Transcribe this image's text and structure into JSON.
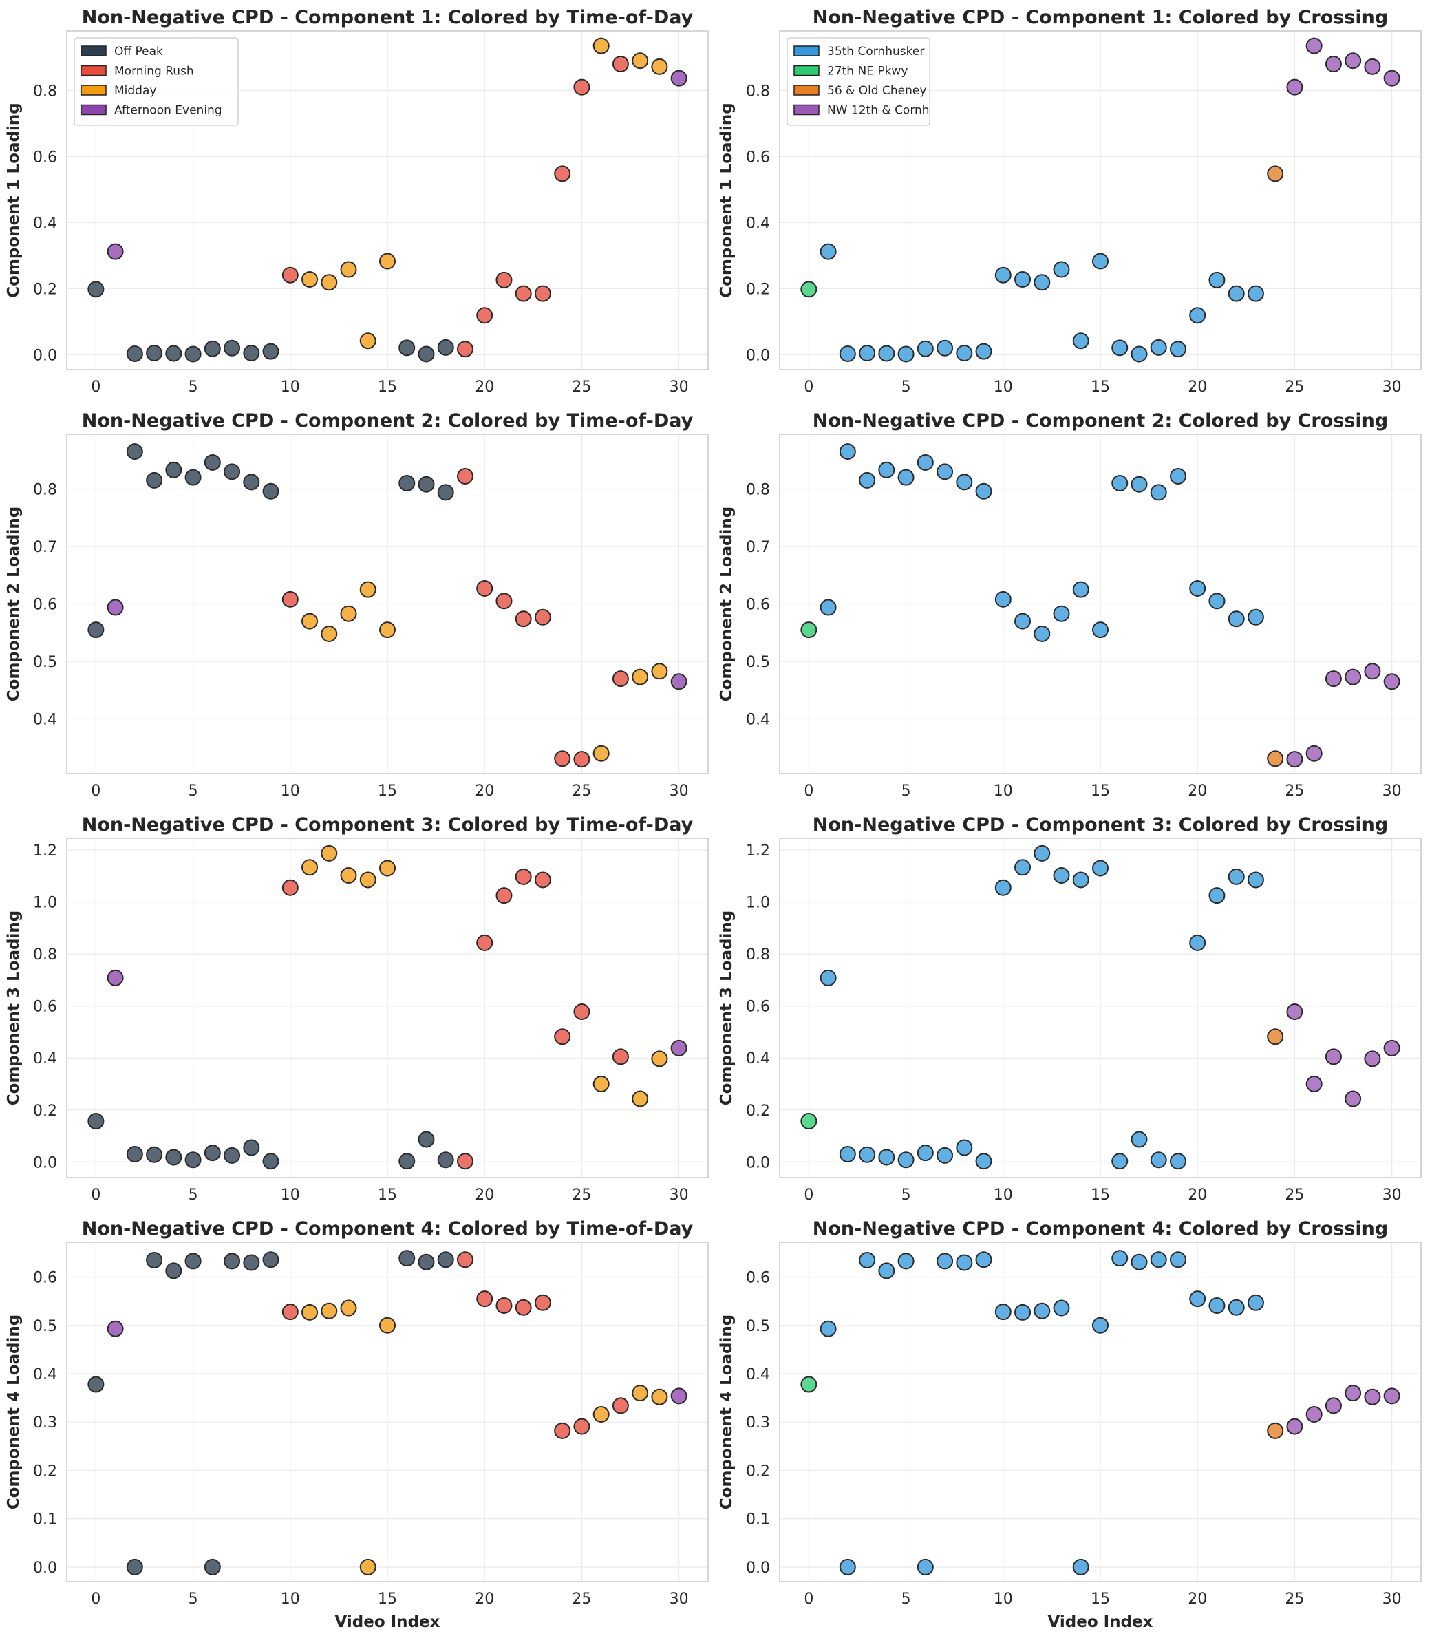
{
  "colors": {
    "Off Peak": "#2c3e50",
    "Morning Rush": "#e74c3c",
    "Midday": "#f39c12",
    "Afternoon Evening": "#8e44ad",
    "35th Cornhusker": "#3498db",
    "27th NE Pkwy": "#2ecc71",
    "56 & Old Cheney": "#e67e22",
    "NW 12th & Cornh": "#9b59b6"
  },
  "chart_data": [
    {
      "type": "scatter",
      "title": "Non-Negative CPD - Component 1: Colored by Time-of-Day",
      "ylabel": "Component 1 Loading",
      "xlabel": "",
      "xlim": [
        -1.5,
        31.5
      ],
      "ylim": [
        -0.045,
        0.98
      ],
      "xticks": [
        "0",
        "5",
        "10",
        "15",
        "20",
        "25",
        "30"
      ],
      "yticks": [
        "0.0",
        "0.2",
        "0.4",
        "0.6",
        "0.8"
      ],
      "legend": [
        "Off Peak",
        "Morning Rush",
        "Midday",
        "Afternoon Evening"
      ],
      "legend_position": "upper-left",
      "x": [
        0,
        1,
        2,
        3,
        4,
        5,
        6,
        7,
        8,
        9,
        10,
        11,
        12,
        13,
        14,
        15,
        16,
        17,
        18,
        19,
        20,
        21,
        22,
        23,
        24,
        25,
        26,
        27,
        28,
        29,
        30
      ],
      "y": [
        0.198,
        0.312,
        0.003,
        0.005,
        0.004,
        0.002,
        0.018,
        0.02,
        0.005,
        0.01,
        0.241,
        0.228,
        0.219,
        0.258,
        0.042,
        0.283,
        0.021,
        0.002,
        0.022,
        0.017,
        0.119,
        0.226,
        0.185,
        0.185,
        0.548,
        0.81,
        0.935,
        0.88,
        0.89,
        0.872,
        0.837
      ],
      "groups": [
        "Off Peak",
        "Afternoon Evening",
        "Off Peak",
        "Off Peak",
        "Off Peak",
        "Off Peak",
        "Off Peak",
        "Off Peak",
        "Off Peak",
        "Off Peak",
        "Morning Rush",
        "Midday",
        "Midday",
        "Midday",
        "Midday",
        "Midday",
        "Off Peak",
        "Off Peak",
        "Off Peak",
        "Morning Rush",
        "Morning Rush",
        "Morning Rush",
        "Morning Rush",
        "Morning Rush",
        "Morning Rush",
        "Morning Rush",
        "Midday",
        "Morning Rush",
        "Midday",
        "Midday",
        "Afternoon Evening"
      ]
    },
    {
      "type": "scatter",
      "title": "Non-Negative CPD - Component 1: Colored by Crossing",
      "ylabel": "Component 1 Loading",
      "xlabel": "",
      "xlim": [
        -1.5,
        31.5
      ],
      "ylim": [
        -0.045,
        0.98
      ],
      "xticks": [
        "0",
        "5",
        "10",
        "15",
        "20",
        "25",
        "30"
      ],
      "yticks": [
        "0.0",
        "0.2",
        "0.4",
        "0.6",
        "0.8"
      ],
      "legend": [
        "35th Cornhusker",
        "27th NE Pkwy",
        "56 & Old Cheney",
        "NW 12th & Cornh"
      ],
      "legend_position": "upper-left",
      "x": [
        0,
        1,
        2,
        3,
        4,
        5,
        6,
        7,
        8,
        9,
        10,
        11,
        12,
        13,
        14,
        15,
        16,
        17,
        18,
        19,
        20,
        21,
        22,
        23,
        24,
        25,
        26,
        27,
        28,
        29,
        30
      ],
      "y": [
        0.198,
        0.312,
        0.003,
        0.005,
        0.004,
        0.002,
        0.018,
        0.02,
        0.005,
        0.01,
        0.241,
        0.228,
        0.219,
        0.258,
        0.042,
        0.283,
        0.021,
        0.002,
        0.022,
        0.017,
        0.119,
        0.226,
        0.185,
        0.185,
        0.548,
        0.81,
        0.935,
        0.88,
        0.89,
        0.872,
        0.837
      ],
      "groups": [
        "27th NE Pkwy",
        "35th Cornhusker",
        "35th Cornhusker",
        "35th Cornhusker",
        "35th Cornhusker",
        "35th Cornhusker",
        "35th Cornhusker",
        "35th Cornhusker",
        "35th Cornhusker",
        "35th Cornhusker",
        "35th Cornhusker",
        "35th Cornhusker",
        "35th Cornhusker",
        "35th Cornhusker",
        "35th Cornhusker",
        "35th Cornhusker",
        "35th Cornhusker",
        "35th Cornhusker",
        "35th Cornhusker",
        "35th Cornhusker",
        "35th Cornhusker",
        "35th Cornhusker",
        "35th Cornhusker",
        "35th Cornhusker",
        "56 & Old Cheney",
        "NW 12th & Cornh",
        "NW 12th & Cornh",
        "NW 12th & Cornh",
        "NW 12th & Cornh",
        "NW 12th & Cornh",
        "NW 12th & Cornh"
      ]
    },
    {
      "type": "scatter",
      "title": "Non-Negative CPD - Component 2: Colored by Time-of-Day",
      "ylabel": "Component 2 Loading",
      "xlabel": "",
      "xlim": [
        -1.5,
        31.5
      ],
      "ylim": [
        0.305,
        0.895
      ],
      "xticks": [
        "0",
        "5",
        "10",
        "15",
        "20",
        "25",
        "30"
      ],
      "yticks": [
        "0.4",
        "0.5",
        "0.6",
        "0.7",
        "0.8"
      ],
      "legend": [],
      "x": [
        0,
        1,
        2,
        3,
        4,
        5,
        6,
        7,
        8,
        9,
        10,
        11,
        12,
        13,
        14,
        15,
        16,
        17,
        18,
        19,
        20,
        21,
        22,
        23,
        24,
        25,
        26,
        27,
        28,
        29,
        30
      ],
      "y": [
        0.555,
        0.594,
        0.865,
        0.815,
        0.833,
        0.82,
        0.846,
        0.83,
        0.812,
        0.796,
        0.608,
        0.57,
        0.548,
        0.583,
        0.625,
        0.555,
        0.81,
        0.808,
        0.794,
        0.822,
        0.627,
        0.605,
        0.574,
        0.577,
        0.331,
        0.33,
        0.34,
        0.47,
        0.473,
        0.483,
        0.465
      ],
      "groups": [
        "Off Peak",
        "Afternoon Evening",
        "Off Peak",
        "Off Peak",
        "Off Peak",
        "Off Peak",
        "Off Peak",
        "Off Peak",
        "Off Peak",
        "Off Peak",
        "Morning Rush",
        "Midday",
        "Midday",
        "Midday",
        "Midday",
        "Midday",
        "Off Peak",
        "Off Peak",
        "Off Peak",
        "Morning Rush",
        "Morning Rush",
        "Morning Rush",
        "Morning Rush",
        "Morning Rush",
        "Morning Rush",
        "Morning Rush",
        "Midday",
        "Morning Rush",
        "Midday",
        "Midday",
        "Afternoon Evening"
      ]
    },
    {
      "type": "scatter",
      "title": "Non-Negative CPD - Component 2: Colored by Crossing",
      "ylabel": "Component 2 Loading",
      "xlabel": "",
      "xlim": [
        -1.5,
        31.5
      ],
      "ylim": [
        0.305,
        0.895
      ],
      "xticks": [
        "0",
        "5",
        "10",
        "15",
        "20",
        "25",
        "30"
      ],
      "yticks": [
        "0.4",
        "0.5",
        "0.6",
        "0.7",
        "0.8"
      ],
      "legend": [],
      "x": [
        0,
        1,
        2,
        3,
        4,
        5,
        6,
        7,
        8,
        9,
        10,
        11,
        12,
        13,
        14,
        15,
        16,
        17,
        18,
        19,
        20,
        21,
        22,
        23,
        24,
        25,
        26,
        27,
        28,
        29,
        30
      ],
      "y": [
        0.555,
        0.594,
        0.865,
        0.815,
        0.833,
        0.82,
        0.846,
        0.83,
        0.812,
        0.796,
        0.608,
        0.57,
        0.548,
        0.583,
        0.625,
        0.555,
        0.81,
        0.808,
        0.794,
        0.822,
        0.627,
        0.605,
        0.574,
        0.577,
        0.331,
        0.33,
        0.34,
        0.47,
        0.473,
        0.483,
        0.465
      ],
      "groups": [
        "27th NE Pkwy",
        "35th Cornhusker",
        "35th Cornhusker",
        "35th Cornhusker",
        "35th Cornhusker",
        "35th Cornhusker",
        "35th Cornhusker",
        "35th Cornhusker",
        "35th Cornhusker",
        "35th Cornhusker",
        "35th Cornhusker",
        "35th Cornhusker",
        "35th Cornhusker",
        "35th Cornhusker",
        "35th Cornhusker",
        "35th Cornhusker",
        "35th Cornhusker",
        "35th Cornhusker",
        "35th Cornhusker",
        "35th Cornhusker",
        "35th Cornhusker",
        "35th Cornhusker",
        "35th Cornhusker",
        "35th Cornhusker",
        "56 & Old Cheney",
        "NW 12th & Cornh",
        "NW 12th & Cornh",
        "NW 12th & Cornh",
        "NW 12th & Cornh",
        "NW 12th & Cornh",
        "NW 12th & Cornh"
      ]
    },
    {
      "type": "scatter",
      "title": "Non-Negative CPD - Component 3: Colored by Time-of-Day",
      "ylabel": "Component 3 Loading",
      "xlabel": "",
      "xlim": [
        -1.5,
        31.5
      ],
      "ylim": [
        -0.06,
        1.245
      ],
      "xticks": [
        "0",
        "5",
        "10",
        "15",
        "20",
        "25",
        "30"
      ],
      "yticks": [
        "0.0",
        "0.2",
        "0.4",
        "0.6",
        "0.8",
        "1.0",
        "1.2"
      ],
      "legend": [],
      "x": [
        0,
        1,
        2,
        3,
        4,
        5,
        6,
        7,
        8,
        9,
        10,
        11,
        12,
        13,
        14,
        15,
        16,
        17,
        18,
        19,
        20,
        21,
        22,
        23,
        24,
        25,
        26,
        27,
        28,
        29,
        30
      ],
      "y": [
        0.157,
        0.708,
        0.03,
        0.028,
        0.018,
        0.008,
        0.035,
        0.025,
        0.055,
        0.003,
        1.055,
        1.133,
        1.187,
        1.102,
        1.085,
        1.13,
        0.003,
        0.087,
        0.008,
        0.003,
        0.843,
        1.025,
        1.097,
        1.085,
        0.482,
        0.578,
        0.3,
        0.405,
        0.243,
        0.397,
        0.438
      ],
      "groups": [
        "Off Peak",
        "Afternoon Evening",
        "Off Peak",
        "Off Peak",
        "Off Peak",
        "Off Peak",
        "Off Peak",
        "Off Peak",
        "Off Peak",
        "Off Peak",
        "Morning Rush",
        "Midday",
        "Midday",
        "Midday",
        "Midday",
        "Midday",
        "Off Peak",
        "Off Peak",
        "Off Peak",
        "Morning Rush",
        "Morning Rush",
        "Morning Rush",
        "Morning Rush",
        "Morning Rush",
        "Morning Rush",
        "Morning Rush",
        "Midday",
        "Morning Rush",
        "Midday",
        "Midday",
        "Afternoon Evening"
      ]
    },
    {
      "type": "scatter",
      "title": "Non-Negative CPD - Component 3: Colored by Crossing",
      "ylabel": "Component 3 Loading",
      "xlabel": "",
      "xlim": [
        -1.5,
        31.5
      ],
      "ylim": [
        -0.06,
        1.245
      ],
      "xticks": [
        "0",
        "5",
        "10",
        "15",
        "20",
        "25",
        "30"
      ],
      "yticks": [
        "0.0",
        "0.2",
        "0.4",
        "0.6",
        "0.8",
        "1.0",
        "1.2"
      ],
      "legend": [],
      "x": [
        0,
        1,
        2,
        3,
        4,
        5,
        6,
        7,
        8,
        9,
        10,
        11,
        12,
        13,
        14,
        15,
        16,
        17,
        18,
        19,
        20,
        21,
        22,
        23,
        24,
        25,
        26,
        27,
        28,
        29,
        30
      ],
      "y": [
        0.157,
        0.708,
        0.03,
        0.028,
        0.018,
        0.008,
        0.035,
        0.025,
        0.055,
        0.003,
        1.055,
        1.133,
        1.187,
        1.102,
        1.085,
        1.13,
        0.003,
        0.087,
        0.008,
        0.003,
        0.843,
        1.025,
        1.097,
        1.085,
        0.482,
        0.578,
        0.3,
        0.405,
        0.243,
        0.397,
        0.438
      ],
      "groups": [
        "27th NE Pkwy",
        "35th Cornhusker",
        "35th Cornhusker",
        "35th Cornhusker",
        "35th Cornhusker",
        "35th Cornhusker",
        "35th Cornhusker",
        "35th Cornhusker",
        "35th Cornhusker",
        "35th Cornhusker",
        "35th Cornhusker",
        "35th Cornhusker",
        "35th Cornhusker",
        "35th Cornhusker",
        "35th Cornhusker",
        "35th Cornhusker",
        "35th Cornhusker",
        "35th Cornhusker",
        "35th Cornhusker",
        "35th Cornhusker",
        "35th Cornhusker",
        "35th Cornhusker",
        "35th Cornhusker",
        "35th Cornhusker",
        "56 & Old Cheney",
        "NW 12th & Cornh",
        "NW 12th & Cornh",
        "NW 12th & Cornh",
        "NW 12th & Cornh",
        "NW 12th & Cornh",
        "NW 12th & Cornh"
      ]
    },
    {
      "type": "scatter",
      "title": "Non-Negative CPD - Component 4: Colored by Time-of-Day",
      "ylabel": "Component 4 Loading",
      "xlabel": "Video Index",
      "xlim": [
        -1.5,
        31.5
      ],
      "ylim": [
        -0.03,
        0.672
      ],
      "xticks": [
        "0",
        "5",
        "10",
        "15",
        "20",
        "25",
        "30"
      ],
      "yticks": [
        "0.0",
        "0.1",
        "0.2",
        "0.3",
        "0.4",
        "0.5",
        "0.6"
      ],
      "legend": [],
      "x": [
        0,
        1,
        2,
        3,
        4,
        5,
        6,
        7,
        8,
        9,
        10,
        11,
        12,
        13,
        14,
        15,
        16,
        17,
        18,
        19,
        20,
        21,
        22,
        23,
        24,
        25,
        26,
        27,
        28,
        29,
        30
      ],
      "y": [
        0.378,
        0.493,
        0.0,
        0.635,
        0.613,
        0.633,
        0.0,
        0.633,
        0.63,
        0.636,
        0.528,
        0.527,
        0.53,
        0.536,
        0.0,
        0.5,
        0.639,
        0.631,
        0.636,
        0.636,
        0.555,
        0.541,
        0.537,
        0.547,
        0.282,
        0.291,
        0.316,
        0.334,
        0.36,
        0.352,
        0.354
      ],
      "groups": [
        "Off Peak",
        "Afternoon Evening",
        "Off Peak",
        "Off Peak",
        "Off Peak",
        "Off Peak",
        "Off Peak",
        "Off Peak",
        "Off Peak",
        "Off Peak",
        "Morning Rush",
        "Midday",
        "Midday",
        "Midday",
        "Midday",
        "Midday",
        "Off Peak",
        "Off Peak",
        "Off Peak",
        "Morning Rush",
        "Morning Rush",
        "Morning Rush",
        "Morning Rush",
        "Morning Rush",
        "Morning Rush",
        "Morning Rush",
        "Midday",
        "Morning Rush",
        "Midday",
        "Midday",
        "Afternoon Evening"
      ]
    },
    {
      "type": "scatter",
      "title": "Non-Negative CPD - Component 4: Colored by Crossing",
      "ylabel": "Component 4 Loading",
      "xlabel": "Video Index",
      "xlim": [
        -1.5,
        31.5
      ],
      "ylim": [
        -0.03,
        0.672
      ],
      "xticks": [
        "0",
        "5",
        "10",
        "15",
        "20",
        "25",
        "30"
      ],
      "yticks": [
        "0.0",
        "0.1",
        "0.2",
        "0.3",
        "0.4",
        "0.5",
        "0.6"
      ],
      "legend": [],
      "x": [
        0,
        1,
        2,
        3,
        4,
        5,
        6,
        7,
        8,
        9,
        10,
        11,
        12,
        13,
        14,
        15,
        16,
        17,
        18,
        19,
        20,
        21,
        22,
        23,
        24,
        25,
        26,
        27,
        28,
        29,
        30
      ],
      "y": [
        0.378,
        0.493,
        0.0,
        0.635,
        0.613,
        0.633,
        0.0,
        0.633,
        0.63,
        0.636,
        0.528,
        0.527,
        0.53,
        0.536,
        0.0,
        0.5,
        0.639,
        0.631,
        0.636,
        0.636,
        0.555,
        0.541,
        0.537,
        0.547,
        0.282,
        0.291,
        0.316,
        0.334,
        0.36,
        0.352,
        0.354
      ],
      "groups": [
        "27th NE Pkwy",
        "35th Cornhusker",
        "35th Cornhusker",
        "35th Cornhusker",
        "35th Cornhusker",
        "35th Cornhusker",
        "35th Cornhusker",
        "35th Cornhusker",
        "35th Cornhusker",
        "35th Cornhusker",
        "35th Cornhusker",
        "35th Cornhusker",
        "35th Cornhusker",
        "35th Cornhusker",
        "35th Cornhusker",
        "35th Cornhusker",
        "35th Cornhusker",
        "35th Cornhusker",
        "35th Cornhusker",
        "35th Cornhusker",
        "35th Cornhusker",
        "35th Cornhusker",
        "35th Cornhusker",
        "35th Cornhusker",
        "56 & Old Cheney",
        "NW 12th & Cornh",
        "NW 12th & Cornh",
        "NW 12th & Cornh",
        "NW 12th & Cornh",
        "NW 12th & Cornh",
        "NW 12th & Cornh"
      ]
    }
  ]
}
